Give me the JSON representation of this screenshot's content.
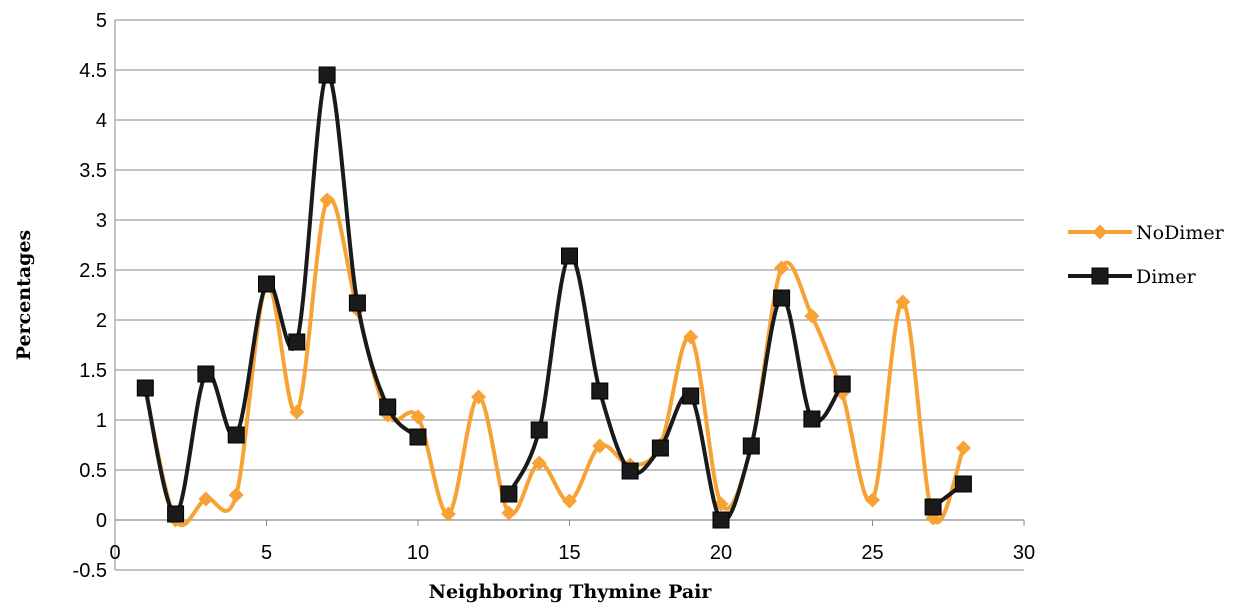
{
  "chart_data": {
    "type": "line",
    "title": "",
    "xlabel": "Neighboring Thymine Pair",
    "ylabel": "Percentages",
    "xlim": [
      0,
      30
    ],
    "ylim": [
      -0.5,
      5
    ],
    "x_ticks": [
      0,
      5,
      10,
      15,
      20,
      25,
      30
    ],
    "y_ticks": [
      -0.5,
      0,
      0.5,
      1,
      1.5,
      2,
      2.5,
      3,
      3.5,
      4,
      4.5,
      5
    ],
    "x_tick_labels": [
      "0",
      "5",
      "10",
      "15",
      "20",
      "25",
      "30"
    ],
    "y_tick_labels": [
      "-0.5",
      "0",
      "0.5",
      "1",
      "1.5",
      "2",
      "2.5",
      "3",
      "3.5",
      "4",
      "4.5",
      "5"
    ],
    "grid": "horizontal",
    "legend_position": "right",
    "smooth": true,
    "series": [
      {
        "name": "NoDimer",
        "color": "#F7A235",
        "marker": "diamond",
        "x": [
          1,
          2,
          3,
          4,
          5,
          6,
          7,
          8,
          9,
          10,
          11,
          12,
          13,
          14,
          15,
          16,
          17,
          18,
          19,
          20,
          21,
          22,
          23,
          24,
          25,
          26,
          27,
          28
        ],
        "y": [
          1.3,
          0.0,
          0.21,
          0.25,
          2.35,
          1.08,
          3.2,
          2.1,
          1.05,
          1.03,
          0.06,
          1.23,
          0.07,
          0.57,
          0.19,
          0.74,
          0.55,
          0.75,
          1.83,
          0.16,
          0.74,
          2.52,
          2.04,
          1.27,
          0.2,
          2.18,
          0.02,
          0.72
        ]
      },
      {
        "name": "Dimer",
        "color": "#1A1A1A",
        "marker": "square",
        "x": [
          1,
          2,
          3,
          4,
          5,
          6,
          7,
          8,
          9,
          10,
          13,
          14,
          15,
          16,
          17,
          18,
          19,
          20,
          21,
          22,
          23,
          24,
          27,
          28
        ],
        "y": [
          1.32,
          0.06,
          1.46,
          0.85,
          2.36,
          1.78,
          4.45,
          2.17,
          1.13,
          0.83,
          0.26,
          0.9,
          2.64,
          1.29,
          0.49,
          0.72,
          1.24,
          0.0,
          0.74,
          2.22,
          1.01,
          1.36,
          0.13,
          0.36
        ]
      }
    ]
  }
}
